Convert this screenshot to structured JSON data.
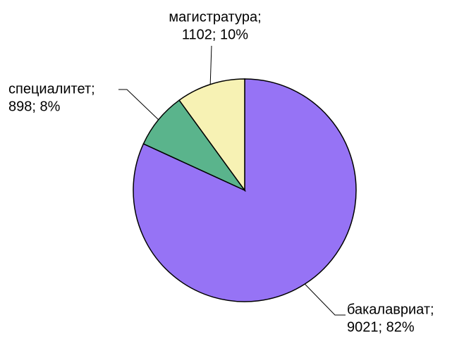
{
  "chart_data": {
    "type": "pie",
    "categories": [
      "бакалавриат;",
      "специалитет;",
      "магистратура;"
    ],
    "values": [
      9021,
      898,
      1102
    ],
    "value_labels": [
      "9021; 82%",
      "898; 8%",
      "1102; 10%"
    ],
    "colors": [
      "#9673f5",
      "#5ab48c",
      "#f7f2b4"
    ]
  }
}
